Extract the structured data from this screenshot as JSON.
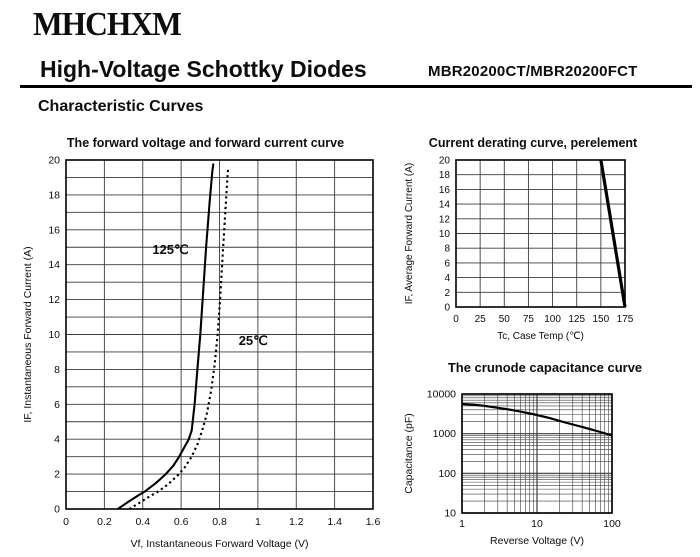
{
  "header": {
    "logo": "MHCHXM",
    "title": "High-Voltage Schottky Diodes",
    "part_number": "MBR20200CT/MBR20200FCT",
    "section": "Characteristic Curves"
  },
  "colors": {
    "ink": "#0d0d0d",
    "grid": "#3c3c3c",
    "curve": "#000000"
  },
  "chart_data": [
    {
      "type": "line",
      "title": "The forward voltage and forward current curve",
      "xlabel": "Vf, Instantaneous Forward Voltage (V)",
      "ylabel": "IF, Instantaneous Forward Current (A)",
      "xscale": "linear",
      "yscale": "linear",
      "xlim": [
        0,
        1.6
      ],
      "ylim": [
        0,
        20
      ],
      "x_grid_step": 0.2,
      "y_grid_step": 1,
      "x_ticks": {
        "values": [
          0,
          0.2,
          0.4,
          0.6,
          0.8,
          1,
          1.2,
          1.4,
          1.6
        ],
        "labels": [
          "0",
          "0.2",
          "0.4",
          "0.6",
          "0.8",
          "1",
          "1.2",
          "1.4",
          "1.6"
        ]
      },
      "y_ticks": {
        "values": [
          0,
          2,
          4,
          6,
          8,
          10,
          12,
          14,
          16,
          18,
          20
        ],
        "labels": [
          "0",
          "2",
          "4",
          "6",
          "8",
          "10",
          "12",
          "14",
          "16",
          "18",
          "20"
        ]
      },
      "series": [
        {
          "name": "125℃",
          "style": "solid",
          "width": 2.1,
          "points": [
            [
              0.27,
              0
            ],
            [
              0.33,
              0.45
            ],
            [
              0.38,
              0.8
            ],
            [
              0.41,
              1
            ],
            [
              0.47,
              1.5
            ],
            [
              0.52,
              2
            ],
            [
              0.56,
              2.5
            ],
            [
              0.59,
              3
            ],
            [
              0.615,
              3.5
            ],
            [
              0.64,
              4
            ],
            [
              0.655,
              4.5
            ],
            [
              0.67,
              6
            ],
            [
              0.685,
              8
            ],
            [
              0.7,
              10
            ],
            [
              0.715,
              12.5
            ],
            [
              0.73,
              15
            ],
            [
              0.748,
              17.5
            ],
            [
              0.763,
              19.4
            ],
            [
              0.768,
              19.8
            ]
          ]
        },
        {
          "name": "25℃",
          "style": "dotted",
          "width": 2.1,
          "points": [
            [
              0.33,
              0
            ],
            [
              0.39,
              0.4
            ],
            [
              0.44,
              0.75
            ],
            [
              0.48,
              1
            ],
            [
              0.53,
              1.4
            ],
            [
              0.58,
              1.9
            ],
            [
              0.62,
              2.4
            ],
            [
              0.655,
              3
            ],
            [
              0.685,
              3.7
            ],
            [
              0.71,
              4.5
            ],
            [
              0.735,
              5.5
            ],
            [
              0.757,
              6.8
            ],
            [
              0.775,
              8.3
            ],
            [
              0.79,
              10
            ],
            [
              0.803,
              12
            ],
            [
              0.816,
              14.5
            ],
            [
              0.83,
              17
            ],
            [
              0.84,
              18.8
            ],
            [
              0.845,
              19.5
            ]
          ]
        }
      ],
      "annotations": [
        {
          "text": "125℃",
          "x": 0.45,
          "y": 14.6
        },
        {
          "text": "25℃",
          "x": 0.9,
          "y": 9.4
        }
      ]
    },
    {
      "type": "line",
      "title": "Current derating curve, perelement",
      "xlabel": "Tc, Case Temp (℃)",
      "ylabel": "IF, Average Forward Current (A)",
      "xscale": "linear",
      "yscale": "linear",
      "xlim": [
        0,
        175
      ],
      "ylim": [
        0,
        20
      ],
      "x_grid_step": 25,
      "y_grid_step": 2,
      "x_ticks": {
        "values": [
          0,
          25,
          50,
          75,
          100,
          125,
          150,
          175
        ],
        "labels": [
          "0",
          "25",
          "50",
          "75",
          "100",
          "125",
          "150",
          "175"
        ]
      },
      "y_ticks": {
        "values": [
          0,
          2,
          4,
          6,
          8,
          10,
          12,
          14,
          16,
          18,
          20
        ],
        "labels": [
          "0",
          "2",
          "4",
          "6",
          "8",
          "10",
          "12",
          "14",
          "16",
          "18",
          "20"
        ]
      },
      "series": [
        {
          "name": "derating-line",
          "style": "solid",
          "width": 3.2,
          "points": [
            [
              150,
              20
            ],
            [
              175,
              0
            ]
          ]
        }
      ],
      "annotations": []
    },
    {
      "type": "line",
      "title": "The crunode capacitance curve",
      "xlabel": "Reverse Voltage (V)",
      "ylabel": "Capacitance (pF)",
      "xscale": "log",
      "yscale": "log",
      "xlim": [
        1,
        100
      ],
      "ylim": [
        10,
        10000
      ],
      "x_ticks": {
        "values": [
          1,
          10,
          100
        ],
        "labels": [
          "1",
          "10",
          "100"
        ]
      },
      "y_ticks": {
        "values": [
          10,
          100,
          1000,
          10000
        ],
        "labels": [
          "10",
          "100",
          "1000",
          "10000"
        ]
      },
      "series": [
        {
          "name": "capacitance",
          "style": "solid",
          "width": 2.2,
          "points": [
            [
              1,
              5600
            ],
            [
              1.5,
              5300
            ],
            [
              2,
              5000
            ],
            [
              3,
              4500
            ],
            [
              4,
              4150
            ],
            [
              5,
              3850
            ],
            [
              7,
              3400
            ],
            [
              10,
              2950
            ],
            [
              15,
              2450
            ],
            [
              20,
              2100
            ],
            [
              30,
              1700
            ],
            [
              40,
              1480
            ],
            [
              50,
              1320
            ],
            [
              70,
              1100
            ],
            [
              100,
              900
            ]
          ]
        }
      ],
      "annotations": []
    }
  ]
}
